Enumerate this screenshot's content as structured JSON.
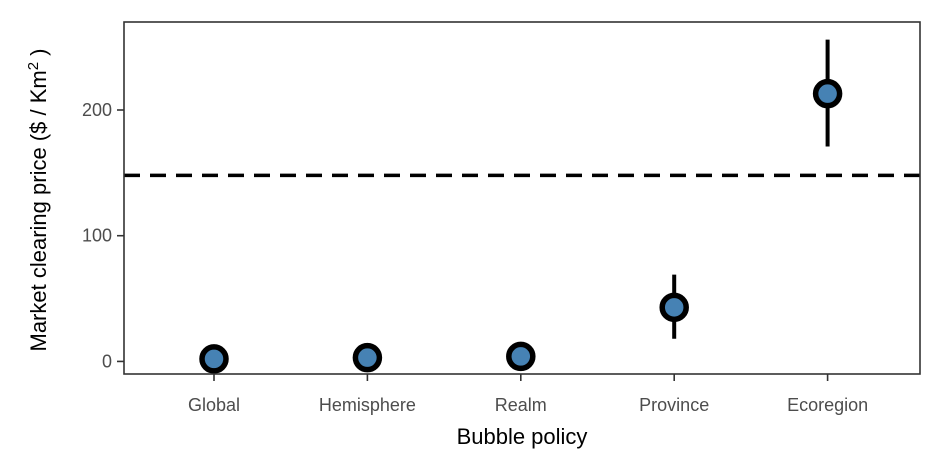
{
  "chart_data": {
    "type": "scatter",
    "title": "",
    "xlabel": "Bubble policy",
    "ylabel": "Market clearing price ($ / Km",
    "ylabel_superscript": "2",
    "ylabel_suffix": " )",
    "categories": [
      "Global",
      "Hemisphere",
      "Realm",
      "Province",
      "Ecoregion"
    ],
    "values": [
      2,
      3,
      4,
      43,
      213
    ],
    "error_low": [
      2,
      3,
      4,
      18,
      171
    ],
    "error_high": [
      2,
      3,
      4,
      69,
      256
    ],
    "ylim": [
      -10,
      270
    ],
    "yticks": [
      0,
      100,
      200
    ],
    "ytick_labels": [
      "0",
      "100",
      "200"
    ],
    "reference_line": {
      "value": 148,
      "style": "dashed",
      "color": "#000000"
    },
    "point_fill": "#4682b4",
    "point_stroke": "#000000",
    "grid": false,
    "legend": "none"
  }
}
